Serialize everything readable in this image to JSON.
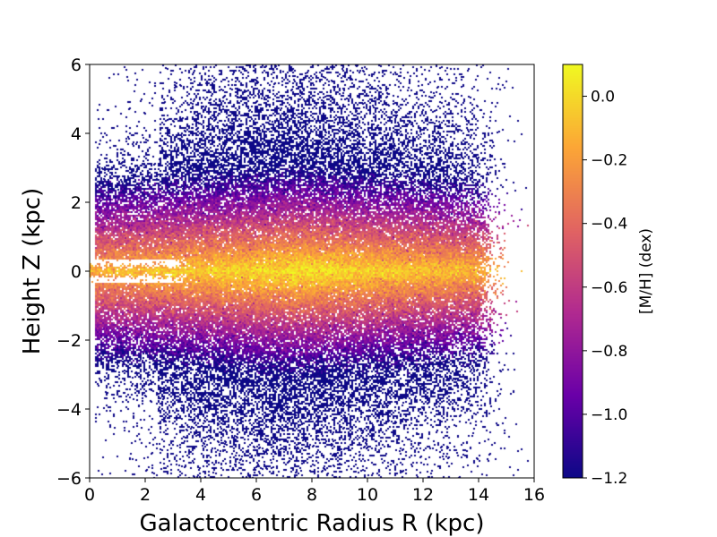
{
  "chart_data": {
    "type": "heatmap",
    "title": "",
    "xlabel": "Galactocentric Radius R (kpc)",
    "ylabel": "Height Z (kpc)",
    "xlim": [
      0,
      16
    ],
    "ylim": [
      -6,
      6
    ],
    "xticks": [
      0,
      2,
      4,
      6,
      8,
      10,
      12,
      14,
      16
    ],
    "yticks": [
      -6,
      -4,
      -2,
      0,
      2,
      4,
      6
    ],
    "xtick_labels": [
      "0",
      "2",
      "4",
      "6",
      "8",
      "10",
      "12",
      "14",
      "16"
    ],
    "ytick_labels": [
      "−6",
      "−4",
      "−2",
      "0",
      "2",
      "4",
      "6"
    ],
    "colorbar": {
      "label": "[M/H] (dex)",
      "range": [
        -1.2,
        0.1
      ],
      "ticks": [
        0.0,
        -0.2,
        -0.4,
        -0.6,
        -0.8,
        -1.0,
        -1.2
      ],
      "tick_labels": [
        "0.0",
        "−0.2",
        "−0.4",
        "−0.6",
        "−0.8",
        "−1.0",
        "−1.2"
      ],
      "colormap": "plasma",
      "colors": [
        "#0d0887",
        "#6a00a8",
        "#b12a90",
        "#e16462",
        "#fca636",
        "#f0f921"
      ]
    },
    "grid": false,
    "description_of_distribution": {
      "metal_rich_core_center": [
        7.5,
        0
      ],
      "metallicity_at_midplane": 0.0,
      "metallicity_at_high_z": -1.1,
      "inner_gap_radius_max": 4
    }
  }
}
